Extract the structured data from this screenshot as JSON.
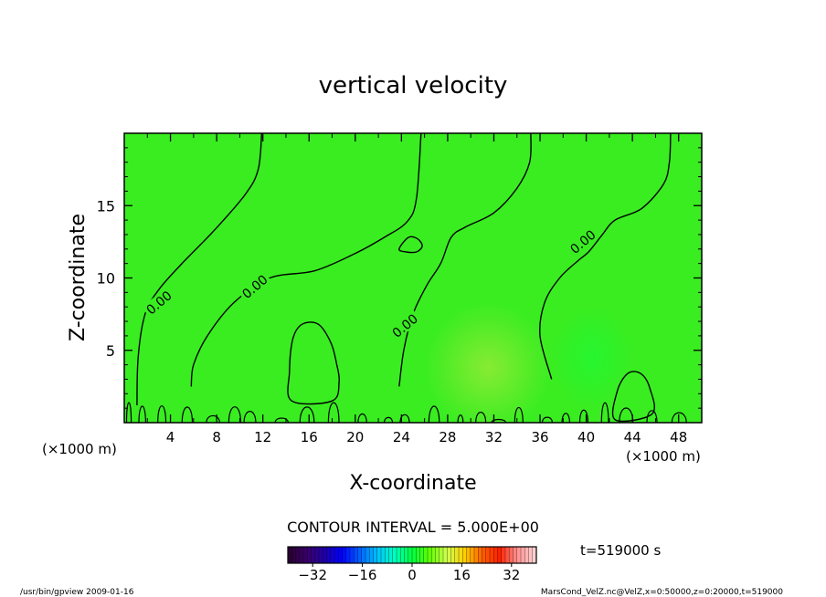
{
  "chart_data": {
    "type": "heatmap",
    "title": "vertical velocity",
    "xlabel": "X-coordinate",
    "ylabel": "Z-coordinate",
    "x_unit_left": "(×1000 m)",
    "x_unit_right": "(×1000 m)",
    "xlim": [
      0,
      50
    ],
    "ylim": [
      0,
      20
    ],
    "x_ticks": [
      4,
      8,
      12,
      16,
      20,
      24,
      28,
      32,
      36,
      40,
      44,
      48
    ],
    "y_ticks": [
      5,
      10,
      15
    ],
    "contour_label": "0.00",
    "contour_labels": [
      {
        "x": 3.0,
        "y": 8.3
      },
      {
        "x": 11.3,
        "y": 9.4
      },
      {
        "x": 24.3,
        "y": 6.7
      },
      {
        "x": 39.7,
        "y": 12.5
      }
    ],
    "contour_lines": [
      [
        [
          1.1,
          1.2
        ],
        [
          1.2,
          4.5
        ],
        [
          1.8,
          7.5
        ],
        [
          3,
          9.2
        ],
        [
          5,
          11
        ],
        [
          7.8,
          13.3
        ],
        [
          10.5,
          15.8
        ],
        [
          11.6,
          17.5
        ],
        [
          11.9,
          20
        ]
      ],
      [
        [
          5.8,
          2.5
        ],
        [
          6,
          4
        ],
        [
          7.2,
          6
        ],
        [
          9.5,
          8.3
        ],
        [
          12.6,
          10
        ],
        [
          16.5,
          10.5
        ],
        [
          20,
          11.7
        ],
        [
          22.5,
          12.8
        ],
        [
          24.5,
          13.9
        ],
        [
          25.3,
          15.5
        ],
        [
          25.7,
          20
        ]
      ],
      [
        [
          23.8,
          2.5
        ],
        [
          24.2,
          5
        ],
        [
          25,
          7.5
        ],
        [
          26.2,
          9.5
        ],
        [
          27.4,
          11
        ],
        [
          28.3,
          12.8
        ],
        [
          29.5,
          13.5
        ],
        [
          32,
          14.5
        ],
        [
          34,
          16.2
        ],
        [
          35.1,
          18
        ],
        [
          35.2,
          20
        ]
      ],
      [
        [
          37,
          3
        ],
        [
          36,
          6
        ],
        [
          36.4,
          8.3
        ],
        [
          37.7,
          10
        ],
        [
          39.3,
          11.2
        ],
        [
          40.2,
          11.8
        ],
        [
          41.4,
          13
        ],
        [
          42.5,
          14
        ],
        [
          44.8,
          14.8
        ],
        [
          46.7,
          16.5
        ],
        [
          47.2,
          18
        ],
        [
          47.3,
          20
        ]
      ]
    ],
    "closed_contours": [
      {
        "points": [
          [
            14.5,
            1.5
          ],
          [
            14.3,
            3.5
          ],
          [
            14.6,
            5.8
          ],
          [
            15.4,
            6.8
          ],
          [
            16.8,
            6.8
          ],
          [
            17.9,
            5.5
          ],
          [
            18.4,
            4
          ],
          [
            18.6,
            2.8
          ],
          [
            18,
            1.5
          ]
        ]
      },
      {
        "points": [
          [
            23.8,
            12
          ],
          [
            24.6,
            12.8
          ],
          [
            25.4,
            12.7
          ],
          [
            25.8,
            12.2
          ],
          [
            25.3,
            11.8
          ],
          [
            24.4,
            11.8
          ]
        ]
      },
      {
        "points": [
          [
            42.5,
            0.2
          ],
          [
            42.7,
            2.2
          ],
          [
            43.6,
            3.4
          ],
          [
            44.7,
            3.4
          ],
          [
            45.5,
            2.4
          ],
          [
            45.7,
            0.6
          ]
        ]
      }
    ],
    "contour_interval_text": "CONTOUR INTERVAL = 5.000E+00",
    "time_text": "t=519000 s",
    "colorbar": {
      "min": -40,
      "max": 40,
      "step": 1.25,
      "ticks": [
        -32,
        -16,
        0,
        16,
        32
      ],
      "colors": [
        "#2a0035",
        "#3a006a",
        "#1e00a8",
        "#0000ff",
        "#0060ff",
        "#00c0ff",
        "#00ffc0",
        "#00ff40",
        "#60ff00",
        "#d0ff50",
        "#ffd000",
        "#ff6000",
        "#ff2000",
        "#ff9090",
        "#ffd0d0"
      ]
    },
    "field_color": "#39ed21",
    "field_highlight_color": "#a8ea3a",
    "field_highlight": {
      "x": 31.5,
      "y": 3.8,
      "rx": 5.5,
      "ry": 4.5
    },
    "field_cool_color": "#10ff40",
    "field_cool": {
      "x": 40.5,
      "y": 4.5,
      "rx": 3.5,
      "ry": 3.5
    }
  },
  "footer": {
    "left": "/usr/bin/gpview   2009-01-16",
    "right": "MarsCond_VelZ.nc@VelZ,x=0:50000,z=0:20000,t=519000"
  }
}
